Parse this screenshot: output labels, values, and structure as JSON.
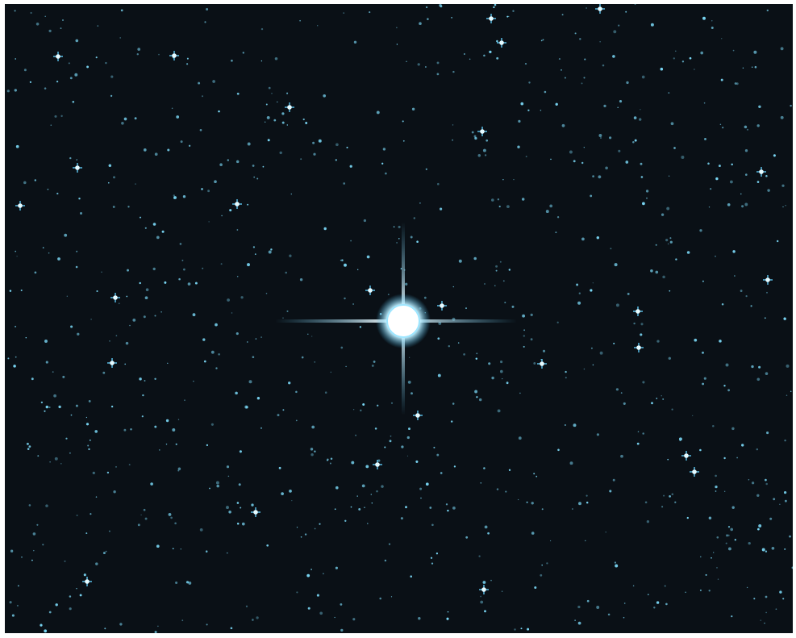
{
  "image": {
    "subject": "star field",
    "background_color": "#0a1016",
    "star_color": "#7fe0ff",
    "bright_star_color": "#e8fbff",
    "spike_color": "#5cc8f2"
  }
}
